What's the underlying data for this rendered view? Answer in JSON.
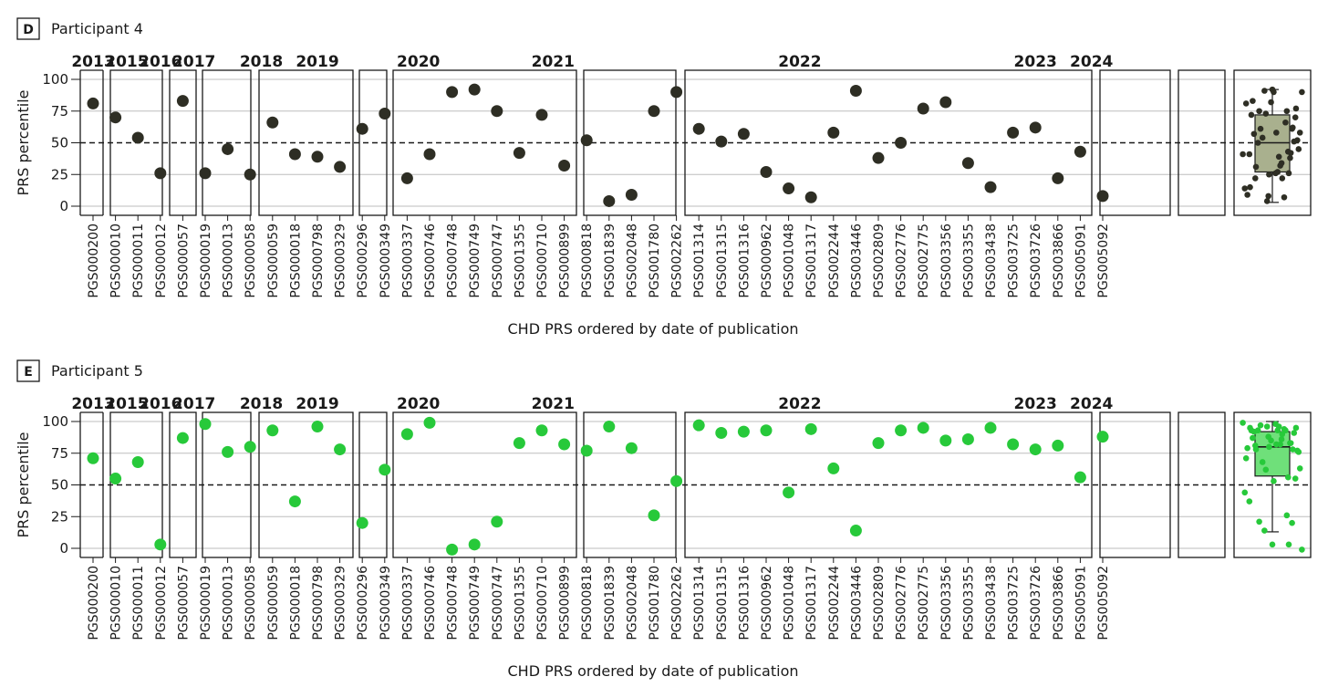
{
  "chart_data": [
    {
      "panel_letter": "D",
      "title": "Participant 4",
      "type": "scatter",
      "ylabel": "PRS percentile",
      "xlabel": "CHD PRS ordered by date of publication",
      "yticks": [
        0,
        25,
        50,
        75,
        100
      ],
      "ylim": [
        -5,
        105
      ],
      "reference_line": 50,
      "grid": true,
      "color": "#2e2e24",
      "box_fill": "#a9b08e",
      "groups": [
        {
          "year": "2013",
          "scores": [
            {
              "id": "PGS000200",
              "value": 81
            }
          ]
        },
        {
          "year": "2015",
          "scores": [
            {
              "id": "PGS000010",
              "value": 70
            },
            {
              "id": "PGS000011",
              "value": 54
            }
          ]
        },
        {
          "year": "2016",
          "scores": [
            {
              "id": "PGS000012",
              "value": 26
            }
          ]
        },
        {
          "year": "2017",
          "scores": [
            {
              "id": "PGS000057",
              "value": 83
            },
            {
              "id": "PGS000019",
              "value": 26
            }
          ]
        },
        {
          "year": "2018",
          "scores": [
            {
              "id": "PGS000013",
              "value": 45
            },
            {
              "id": "PGS000058",
              "value": 25
            },
            {
              "id": "PGS000059",
              "value": 66
            },
            {
              "id": "PGS000018",
              "value": 41
            }
          ]
        },
        {
          "year": "2019",
          "scores": [
            {
              "id": "PGS000798",
              "value": 39
            }
          ]
        },
        {
          "year": "2020",
          "scores": [
            {
              "id": "PGS000329",
              "value": 31
            },
            {
              "id": "PGS000296",
              "value": 61
            },
            {
              "id": "PGS000349",
              "value": 73
            },
            {
              "id": "PGS000337",
              "value": 22
            },
            {
              "id": "PGS000746",
              "value": 41
            },
            {
              "id": "PGS000748",
              "value": 90
            },
            {
              "id": "PGS000749",
              "value": 92
            },
            {
              "id": "PGS000747",
              "value": 75
            }
          ]
        },
        {
          "year": "2021",
          "scores": [
            {
              "id": "PGS001355",
              "value": 42
            },
            {
              "id": "PGS000710",
              "value": 72
            },
            {
              "id": "PGS000899",
              "value": 32
            },
            {
              "id": "PGS000818",
              "value": 52
            }
          ]
        },
        {
          "year": "2022",
          "scores": [
            {
              "id": "PGS001839",
              "value": 4
            },
            {
              "id": "PGS002048",
              "value": 9
            },
            {
              "id": "PGS001780",
              "value": 75
            },
            {
              "id": "PGS002262",
              "value": 90
            },
            {
              "id": "PGS001314",
              "value": 61
            },
            {
              "id": "PGS001315",
              "value": 51
            },
            {
              "id": "PGS001316",
              "value": 57
            },
            {
              "id": "PGS000962",
              "value": 27
            },
            {
              "id": "PGS001048",
              "value": 14
            },
            {
              "id": "PGS001317",
              "value": 7
            },
            {
              "id": "PGS002244",
              "value": 58
            },
            {
              "id": "PGS003446",
              "value": 91
            },
            {
              "id": "PGS002809",
              "value": 38
            },
            {
              "id": "PGS002776",
              "value": 50
            },
            {
              "id": "PGS002775",
              "value": 77
            },
            {
              "id": "PGS003356",
              "value": 82
            },
            {
              "id": "PGS003355",
              "value": 34
            },
            {
              "id": "PGS003438",
              "value": 15
            }
          ]
        },
        {
          "year": "2023",
          "scores": [
            {
              "id": "PGS003725",
              "value": 58
            },
            {
              "id": "PGS003726",
              "value": 62
            },
            {
              "id": "PGS003866",
              "value": 22
            }
          ]
        },
        {
          "year": "2024",
          "scores": [
            {
              "id": "PGS005091",
              "value": 43
            },
            {
              "id": "PGS005092",
              "value": 8
            }
          ]
        }
      ],
      "boxplot": {
        "min": 3,
        "q1": 27,
        "median": 50,
        "q3": 72,
        "max": 92
      }
    },
    {
      "panel_letter": "E",
      "title": "Participant 5",
      "type": "scatter",
      "ylabel": "PRS percentile",
      "xlabel": "CHD PRS ordered by date of publication",
      "yticks": [
        0,
        25,
        50,
        75,
        100
      ],
      "ylim": [
        -5,
        105
      ],
      "reference_line": 50,
      "grid": true,
      "color": "#27c93a",
      "box_fill": "#6fe07a",
      "groups": [
        {
          "year": "2013",
          "scores": [
            {
              "id": "PGS000200",
              "value": 71
            }
          ]
        },
        {
          "year": "2015",
          "scores": [
            {
              "id": "PGS000010",
              "value": 55
            },
            {
              "id": "PGS000011",
              "value": 68
            }
          ]
        },
        {
          "year": "2016",
          "scores": [
            {
              "id": "PGS000012",
              "value": 3
            }
          ]
        },
        {
          "year": "2017",
          "scores": [
            {
              "id": "PGS000057",
              "value": 87
            },
            {
              "id": "PGS000019",
              "value": 98
            }
          ]
        },
        {
          "year": "2018",
          "scores": [
            {
              "id": "PGS000013",
              "value": 76
            },
            {
              "id": "PGS000058",
              "value": 80
            },
            {
              "id": "PGS000059",
              "value": 93
            },
            {
              "id": "PGS000018",
              "value": 37
            }
          ]
        },
        {
          "year": "2019",
          "scores": [
            {
              "id": "PGS000798",
              "value": 96
            }
          ]
        },
        {
          "year": "2020",
          "scores": [
            {
              "id": "PGS000329",
              "value": 78
            },
            {
              "id": "PGS000296",
              "value": 20
            },
            {
              "id": "PGS000349",
              "value": 62
            },
            {
              "id": "PGS000337",
              "value": 90
            },
            {
              "id": "PGS000746",
              "value": 99
            },
            {
              "id": "PGS000748",
              "value": -1
            },
            {
              "id": "PGS000749",
              "value": 3
            },
            {
              "id": "PGS000747",
              "value": 21
            }
          ]
        },
        {
          "year": "2021",
          "scores": [
            {
              "id": "PGS001355",
              "value": 83
            },
            {
              "id": "PGS000710",
              "value": 93
            },
            {
              "id": "PGS000899",
              "value": 82
            },
            {
              "id": "PGS000818",
              "value": 77
            }
          ]
        },
        {
          "year": "2022",
          "scores": [
            {
              "id": "PGS001839",
              "value": 96
            },
            {
              "id": "PGS002048",
              "value": 79
            },
            {
              "id": "PGS001780",
              "value": 26
            },
            {
              "id": "PGS002262",
              "value": 53
            },
            {
              "id": "PGS001314",
              "value": 97
            },
            {
              "id": "PGS001315",
              "value": 91
            },
            {
              "id": "PGS001316",
              "value": 92
            },
            {
              "id": "PGS000962",
              "value": 93
            },
            {
              "id": "PGS001048",
              "value": 44
            },
            {
              "id": "PGS001317",
              "value": 94
            },
            {
              "id": "PGS002244",
              "value": 63
            },
            {
              "id": "PGS003446",
              "value": 14
            },
            {
              "id": "PGS002809",
              "value": 83
            },
            {
              "id": "PGS002776",
              "value": 93
            },
            {
              "id": "PGS002775",
              "value": 95
            },
            {
              "id": "PGS003356",
              "value": 85
            },
            {
              "id": "PGS003355",
              "value": 86
            },
            {
              "id": "PGS003438",
              "value": 95
            }
          ]
        },
        {
          "year": "2023",
          "scores": [
            {
              "id": "PGS003725",
              "value": 82
            },
            {
              "id": "PGS003726",
              "value": 78
            },
            {
              "id": "PGS003866",
              "value": 81
            }
          ]
        },
        {
          "year": "2024",
          "scores": [
            {
              "id": "PGS005091",
              "value": 56
            },
            {
              "id": "PGS005092",
              "value": 88
            }
          ]
        }
      ],
      "boxplot": {
        "min": 13,
        "q1": 57,
        "median": 80,
        "q3": 92,
        "max": 100
      }
    }
  ]
}
